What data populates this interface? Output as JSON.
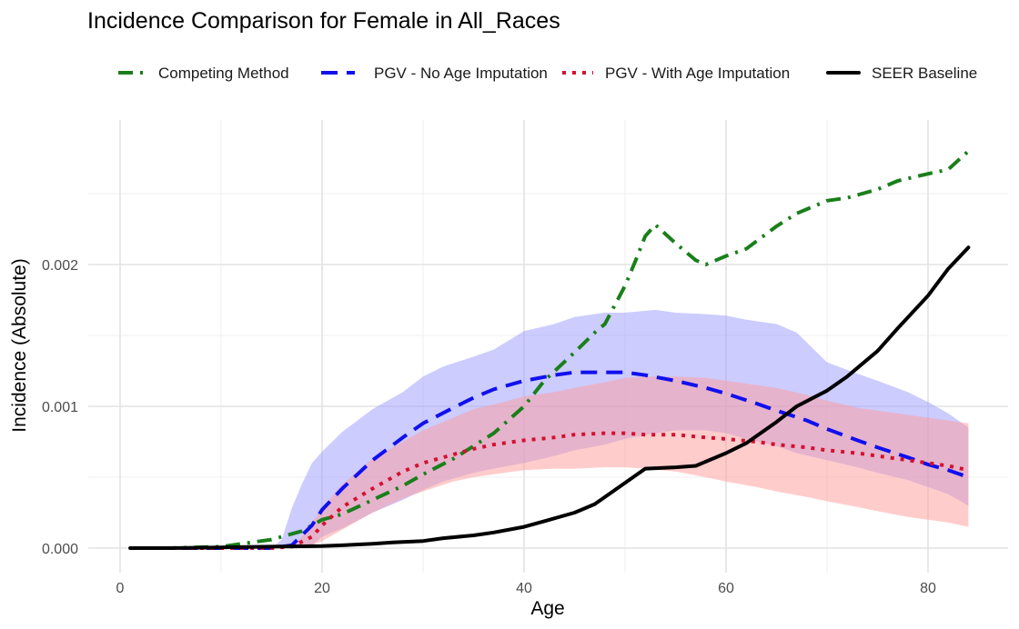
{
  "chart_data": {
    "type": "line",
    "title": "Incidence Comparison for Female in All_Races",
    "xlabel": "Age",
    "ylabel": "Incidence (Absolute)",
    "xlim": [
      -1,
      88
    ],
    "ylim": [
      -0.00012,
      0.003
    ],
    "x_ticks": [
      0,
      20,
      40,
      60,
      80
    ],
    "x_tick_labels": [
      "0",
      "20",
      "40",
      "60",
      "80"
    ],
    "y_ticks": [
      0,
      0.001,
      0.002
    ],
    "y_tick_labels": [
      "0.000",
      "0.001",
      "0.002"
    ],
    "grid": true,
    "legend_position": "top",
    "series": [
      {
        "name": "Competing Method",
        "color": "#1a7f1a",
        "dash": "longdash-dot",
        "x": [
          1,
          5,
          10,
          15,
          18,
          20,
          22,
          25,
          28,
          30,
          33,
          35,
          37,
          40,
          42,
          45,
          47,
          48,
          50,
          51,
          52,
          53,
          55,
          57,
          58,
          60,
          62,
          65,
          67,
          70,
          72,
          75,
          77,
          80,
          82,
          84
        ],
        "y": [
          0.0,
          0.0,
          1e-05,
          6e-05,
          0.00012,
          0.0002,
          0.00024,
          0.00034,
          0.00044,
          0.00052,
          0.00063,
          0.00072,
          0.00081,
          0.001,
          0.00118,
          0.00138,
          0.00152,
          0.00158,
          0.00185,
          0.00202,
          0.0022,
          0.00228,
          0.00215,
          0.00203,
          0.002,
          0.00206,
          0.00211,
          0.00227,
          0.00236,
          0.00245,
          0.00247,
          0.00253,
          0.00259,
          0.00264,
          0.00267,
          0.0028
        ]
      },
      {
        "name": "PGV - No Age Imputation",
        "color": "#1010ee",
        "dash": "dash",
        "x": [
          1,
          5,
          10,
          15,
          17,
          19,
          20,
          22,
          25,
          28,
          30,
          33,
          35,
          37,
          40,
          43,
          45,
          48,
          50,
          52,
          55,
          58,
          60,
          63,
          65,
          68,
          70,
          73,
          75,
          78,
          80,
          82,
          84
        ],
        "y": [
          0.0,
          0.0,
          0.0,
          0.0,
          2e-05,
          0.00016,
          0.00027,
          0.00042,
          0.00062,
          0.00078,
          0.00088,
          0.00099,
          0.00106,
          0.00112,
          0.00118,
          0.00122,
          0.00124,
          0.00124,
          0.00124,
          0.00122,
          0.00118,
          0.00113,
          0.00109,
          0.00102,
          0.00097,
          0.0009,
          0.00084,
          0.00076,
          0.00071,
          0.00064,
          0.00059,
          0.00055,
          0.0005
        ]
      },
      {
        "name": "PGV - With Age Imputation",
        "color": "#d4102e",
        "dash": "dot",
        "x": [
          1,
          5,
          10,
          15,
          17,
          19,
          20,
          22,
          25,
          28,
          30,
          33,
          35,
          37,
          40,
          43,
          45,
          48,
          50,
          52,
          55,
          58,
          60,
          63,
          65,
          68,
          70,
          73,
          75,
          78,
          80,
          82,
          84
        ],
        "y": [
          0.0,
          0.0,
          0.0,
          0.0,
          1e-05,
          8e-05,
          0.00016,
          0.00029,
          0.00042,
          0.00054,
          0.0006,
          0.00066,
          0.0007,
          0.00073,
          0.00076,
          0.00078,
          0.0008,
          0.00081,
          0.00081,
          0.0008,
          0.0008,
          0.00078,
          0.00077,
          0.00075,
          0.00073,
          0.00071,
          0.00069,
          0.00067,
          0.00065,
          0.00062,
          0.0006,
          0.00058,
          0.00055
        ]
      },
      {
        "name": "SEER Baseline",
        "color": "#000000",
        "dash": "solid",
        "x": [
          1,
          5,
          10,
          15,
          20,
          22,
          25,
          27,
          30,
          32,
          35,
          37,
          40,
          42,
          45,
          47,
          50,
          52,
          55,
          57,
          60,
          62,
          65,
          67,
          70,
          72,
          75,
          77,
          80,
          82,
          84
        ],
        "y": [
          0.0,
          0.0,
          5e-06,
          1e-05,
          1.5e-05,
          2e-05,
          3e-05,
          4e-05,
          5e-05,
          7e-05,
          9e-05,
          0.00011,
          0.00015,
          0.00019,
          0.00025,
          0.00031,
          0.00046,
          0.00056,
          0.00057,
          0.00058,
          0.00067,
          0.00074,
          0.00089,
          0.001,
          0.00111,
          0.00121,
          0.00139,
          0.00155,
          0.00178,
          0.00197,
          0.00212
        ]
      }
    ],
    "bands": [
      {
        "of_series": "PGV - No Age Imputation",
        "color": "#9999ff",
        "x": [
          15,
          16,
          17,
          18,
          19,
          20,
          22,
          25,
          28,
          30,
          32,
          35,
          37,
          40,
          43,
          45,
          48,
          50,
          53,
          55,
          58,
          60,
          62,
          65,
          67,
          70,
          73,
          75,
          78,
          80,
          82,
          84
        ],
        "lower": [
          0.0,
          0.0,
          0.0,
          0.0,
          2e-05,
          8e-05,
          0.00014,
          0.00025,
          0.00034,
          0.00041,
          0.00047,
          0.00053,
          0.00056,
          0.0006,
          0.00065,
          0.00069,
          0.00073,
          0.00077,
          0.00081,
          0.00083,
          0.00083,
          0.00081,
          0.00077,
          0.00072,
          0.00067,
          0.00062,
          0.00057,
          0.00053,
          0.00048,
          0.00043,
          0.00038,
          0.0003
        ],
        "upper": [
          0.0,
          6e-05,
          0.00028,
          0.00045,
          0.0006,
          0.00068,
          0.00082,
          0.00098,
          0.0011,
          0.00121,
          0.00128,
          0.00135,
          0.0014,
          0.00153,
          0.00158,
          0.00163,
          0.00166,
          0.00166,
          0.00168,
          0.00166,
          0.00165,
          0.00164,
          0.00161,
          0.00158,
          0.00152,
          0.00131,
          0.00123,
          0.00118,
          0.0011,
          0.00103,
          0.00095,
          0.00085
        ]
      },
      {
        "of_series": "PGV - With Age Imputation",
        "color": "#ff9999",
        "x": [
          17,
          18,
          19,
          20,
          22,
          25,
          28,
          30,
          33,
          35,
          38,
          40,
          43,
          45,
          48,
          50,
          52,
          55,
          58,
          60,
          63,
          65,
          68,
          70,
          73,
          75,
          78,
          80,
          82,
          84
        ],
        "lower": [
          0.0,
          0.0,
          2e-05,
          5e-05,
          0.00013,
          0.00025,
          0.00035,
          0.0004,
          0.00047,
          0.0005,
          0.00053,
          0.00055,
          0.00056,
          0.00056,
          0.00057,
          0.00057,
          0.00056,
          0.00054,
          0.0005,
          0.00047,
          0.00043,
          0.0004,
          0.00036,
          0.00033,
          0.00029,
          0.00026,
          0.00022,
          0.0002,
          0.00018,
          0.00015
        ],
        "upper": [
          2e-05,
          8e-05,
          0.00018,
          0.00028,
          0.00045,
          0.00063,
          0.00075,
          0.00083,
          0.00092,
          0.00098,
          0.00103,
          0.00107,
          0.0011,
          0.00113,
          0.00117,
          0.0012,
          0.00121,
          0.00121,
          0.0012,
          0.00118,
          0.00115,
          0.00113,
          0.00108,
          0.00104,
          0.00099,
          0.00097,
          0.00094,
          0.00092,
          0.0009,
          0.00088
        ]
      }
    ]
  }
}
